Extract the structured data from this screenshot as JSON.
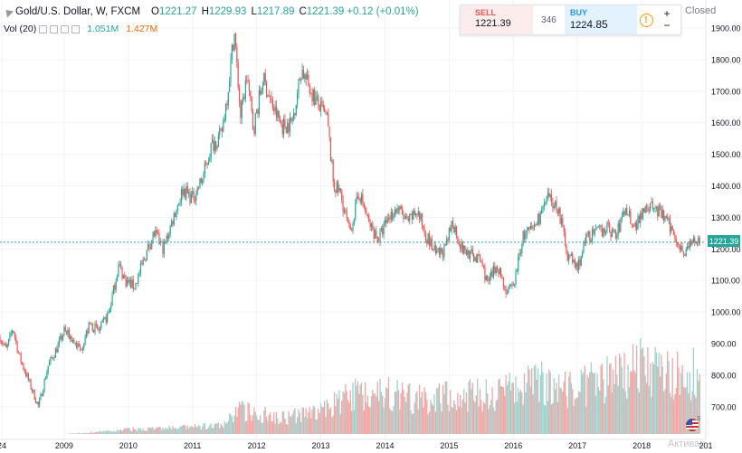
{
  "header": {
    "symbol": "Gold/U.S. Dollar, W, FXCM",
    "open_label": "O",
    "open": "1221.27",
    "high_label": "H",
    "high": "1229.93",
    "low_label": "L",
    "low": "1217.89",
    "close_label": "C",
    "close": "1221.39",
    "change": "+0.12 (+0.01%)"
  },
  "volume_legend": {
    "label": "Vol (20)",
    "value1": "1.051M",
    "value2": "1.427M"
  },
  "trade_panel": {
    "sell_label": "SELL",
    "sell_price": "1221.39",
    "spread": "346",
    "buy_label": "BUY",
    "buy_price_main": "122",
    "buy_price_hi": "4.85",
    "info_icon": "!",
    "plus": "+",
    "minus": "−"
  },
  "market_status": "Closed",
  "current_price_label": "1221.39",
  "watermark": "Активац",
  "flag_badge": "3",
  "colors": {
    "up": "#26a69a",
    "down": "#ef5350",
    "vol_up": "#9fd2ce",
    "vol_down": "#f2a6a4",
    "grid": "#f0f3fa"
  },
  "chart_data": {
    "type": "candlestick",
    "title": "Gold/U.S. Dollar, W, FXCM",
    "x_ticks": [
      "24",
      "2009",
      "2010",
      "2011",
      "2012",
      "2013",
      "2014",
      "2015",
      "2016",
      "2017",
      "2018",
      "201"
    ],
    "y_ticks": [
      "1900.00",
      "1800.00",
      "1700.00",
      "1600.00",
      "1500.00",
      "1400.00",
      "1300.00",
      "1200.00",
      "1100.00",
      "1000.00",
      "900.00",
      "800.00",
      "700.00"
    ],
    "ylim": [
      620,
      1930
    ],
    "xlim": [
      2008.0,
      2019.0
    ],
    "last_price": 1221.39,
    "price_path": [
      [
        2008.0,
        920
      ],
      [
        2008.1,
        880
      ],
      [
        2008.2,
        950
      ],
      [
        2008.3,
        860
      ],
      [
        2008.45,
        780
      ],
      [
        2008.6,
        700
      ],
      [
        2008.75,
        830
      ],
      [
        2008.9,
        890
      ],
      [
        2009.0,
        940
      ],
      [
        2009.1,
        920
      ],
      [
        2009.25,
        880
      ],
      [
        2009.4,
        960
      ],
      [
        2009.55,
        940
      ],
      [
        2009.7,
        1000
      ],
      [
        2009.85,
        1150
      ],
      [
        2009.95,
        1100
      ],
      [
        2010.1,
        1080
      ],
      [
        2010.25,
        1170
      ],
      [
        2010.4,
        1250
      ],
      [
        2010.55,
        1200
      ],
      [
        2010.7,
        1300
      ],
      [
        2010.85,
        1390
      ],
      [
        2011.0,
        1360
      ],
      [
        2011.15,
        1420
      ],
      [
        2011.3,
        1530
      ],
      [
        2011.45,
        1560
      ],
      [
        2011.55,
        1700
      ],
      [
        2011.65,
        1890
      ],
      [
        2011.75,
        1620
      ],
      [
        2011.85,
        1750
      ],
      [
        2011.95,
        1580
      ],
      [
        2012.1,
        1740
      ],
      [
        2012.25,
        1650
      ],
      [
        2012.4,
        1590
      ],
      [
        2012.55,
        1600
      ],
      [
        2012.7,
        1770
      ],
      [
        2012.8,
        1720
      ],
      [
        2012.95,
        1660
      ],
      [
        2013.1,
        1610
      ],
      [
        2013.2,
        1400
      ],
      [
        2013.3,
        1380
      ],
      [
        2013.45,
        1250
      ],
      [
        2013.6,
        1380
      ],
      [
        2013.75,
        1280
      ],
      [
        2013.9,
        1230
      ],
      [
        2014.05,
        1300
      ],
      [
        2014.2,
        1330
      ],
      [
        2014.35,
        1280
      ],
      [
        2014.5,
        1320
      ],
      [
        2014.65,
        1240
      ],
      [
        2014.8,
        1180
      ],
      [
        2014.95,
        1200
      ],
      [
        2015.05,
        1290
      ],
      [
        2015.2,
        1200
      ],
      [
        2015.35,
        1180
      ],
      [
        2015.5,
        1160
      ],
      [
        2015.6,
        1090
      ],
      [
        2015.75,
        1150
      ],
      [
        2015.9,
        1060
      ],
      [
        2016.0,
        1080
      ],
      [
        2016.15,
        1240
      ],
      [
        2016.3,
        1260
      ],
      [
        2016.45,
        1320
      ],
      [
        2016.55,
        1360
      ],
      [
        2016.7,
        1330
      ],
      [
        2016.85,
        1180
      ],
      [
        2017.0,
        1140
      ],
      [
        2017.15,
        1240
      ],
      [
        2017.3,
        1250
      ],
      [
        2017.45,
        1270
      ],
      [
        2017.6,
        1240
      ],
      [
        2017.75,
        1330
      ],
      [
        2017.9,
        1270
      ],
      [
        2018.05,
        1340
      ],
      [
        2018.2,
        1330
      ],
      [
        2018.35,
        1300
      ],
      [
        2018.5,
        1250
      ],
      [
        2018.65,
        1190
      ],
      [
        2018.75,
        1210
      ],
      [
        2018.85,
        1230
      ],
      [
        2018.92,
        1221
      ]
    ],
    "volume_profile": [
      [
        2009.0,
        0.0
      ],
      [
        2009.6,
        0.02
      ],
      [
        2010.0,
        0.04
      ],
      [
        2010.5,
        0.05
      ],
      [
        2011.0,
        0.06
      ],
      [
        2011.5,
        0.08
      ],
      [
        2011.7,
        0.22
      ],
      [
        2012.0,
        0.18
      ],
      [
        2012.5,
        0.15
      ],
      [
        2013.0,
        0.2
      ],
      [
        2013.5,
        0.35
      ],
      [
        2014.0,
        0.38
      ],
      [
        2014.5,
        0.3
      ],
      [
        2015.0,
        0.33
      ],
      [
        2015.5,
        0.35
      ],
      [
        2016.0,
        0.4
      ],
      [
        2016.5,
        0.45
      ],
      [
        2017.0,
        0.4
      ],
      [
        2017.5,
        0.5
      ],
      [
        2018.0,
        0.6
      ],
      [
        2018.3,
        0.55
      ],
      [
        2018.6,
        0.5
      ],
      [
        2018.92,
        0.55
      ]
    ]
  }
}
